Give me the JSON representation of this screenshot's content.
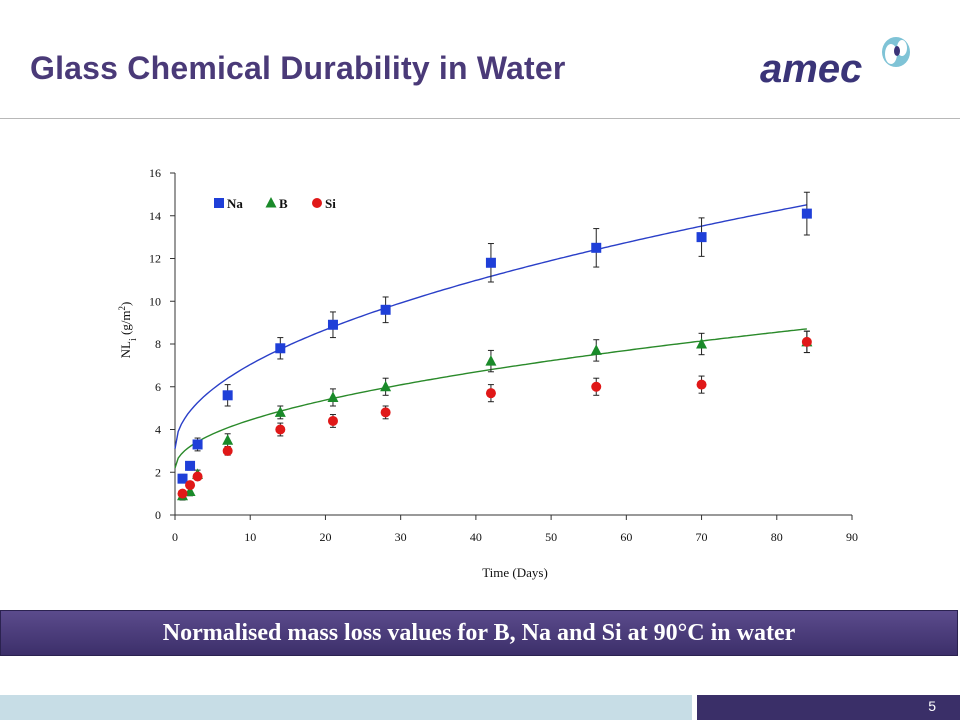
{
  "slide": {
    "title": "Glass Chemical Durability in Water",
    "logo_text": "amec",
    "caption": "Normalised mass loss values for B, Na and Si at 90°C in water",
    "page_number": "5"
  },
  "colors": {
    "title": "#4a3a78",
    "logo": "#3a3478",
    "logo_accent": "#7fc3d6",
    "banner": "#4a3b7c",
    "footer_light": "#c7dde6",
    "footer_dark": "#3a2f68"
  },
  "chart_data": {
    "type": "scatter",
    "title": "",
    "xlabel": "Time (Days)",
    "ylabel": "NL",
    "ylabel_subscript": "i",
    "ylabel_unit": " (g/m",
    "ylabel_unit_sup": "2",
    "ylabel_unit_end": ")",
    "xlim": [
      0,
      90
    ],
    "ylim": [
      0,
      16
    ],
    "xticks": [
      0,
      10,
      20,
      30,
      40,
      50,
      60,
      70,
      80,
      90
    ],
    "yticks": [
      0,
      2,
      4,
      6,
      8,
      10,
      12,
      14,
      16
    ],
    "grid": false,
    "legend": "top-left",
    "series": [
      {
        "name": "Na",
        "marker": "square",
        "color": "#1f3fd8",
        "x": [
          1,
          2,
          3,
          7,
          14,
          21,
          28,
          42,
          56,
          70,
          84
        ],
        "y": [
          1.7,
          2.3,
          3.3,
          5.6,
          7.8,
          8.9,
          9.6,
          11.8,
          12.5,
          13.0,
          14.1
        ],
        "err": [
          0.2,
          0.2,
          0.3,
          0.5,
          0.5,
          0.6,
          0.6,
          0.9,
          0.9,
          0.9,
          1.0
        ],
        "fit": {
          "color": "#2a3fc8",
          "a": 3.1,
          "b": 1.245,
          "p": 0.5
        }
      },
      {
        "name": "B",
        "marker": "triangle",
        "color": "#1a8a2a",
        "x": [
          1,
          2,
          3,
          7,
          14,
          21,
          28,
          42,
          56,
          70,
          84
        ],
        "y": [
          0.9,
          1.1,
          1.9,
          3.5,
          4.8,
          5.5,
          6.0,
          7.2,
          7.7,
          8.0,
          8.1
        ],
        "err": [
          0.2,
          0.2,
          0.2,
          0.3,
          0.3,
          0.4,
          0.4,
          0.5,
          0.5,
          0.5,
          0.5
        ],
        "fit": {
          "color": "#2a8a2a",
          "a": 2.2,
          "b": 0.71,
          "p": 0.5
        }
      },
      {
        "name": "Si",
        "marker": "circle",
        "color": "#e01818",
        "x": [
          1,
          2,
          3,
          7,
          14,
          21,
          28,
          42,
          56,
          70,
          84
        ],
        "y": [
          1.0,
          1.4,
          1.8,
          3.0,
          4.0,
          4.4,
          4.8,
          5.7,
          6.0,
          6.1,
          8.1
        ],
        "err": [
          0.1,
          0.1,
          0.15,
          0.2,
          0.3,
          0.3,
          0.3,
          0.4,
          0.4,
          0.4,
          0.5
        ],
        "fit": null
      }
    ]
  }
}
